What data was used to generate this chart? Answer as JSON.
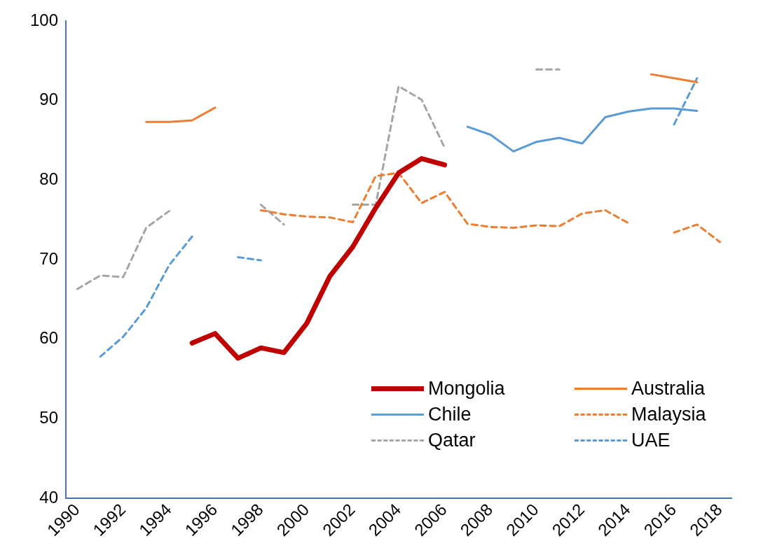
{
  "chart_data": {
    "type": "line",
    "categories": [
      "1990",
      null,
      "1992",
      null,
      "1994",
      null,
      "1996",
      null,
      "1998",
      null,
      "2000",
      null,
      "2002",
      null,
      "2004",
      null,
      "2006",
      null,
      "2008",
      null,
      "2010",
      null,
      "2012",
      null,
      "2014",
      null,
      "2016",
      null,
      "2018"
    ],
    "series": [
      {
        "name": "Mongolia",
        "color": "#c00000",
        "line_style": "solid",
        "values": [
          null,
          null,
          null,
          null,
          null,
          59.5,
          60.7,
          57.6,
          58.9,
          58.3,
          62.0,
          67.9,
          71.6,
          76.5,
          80.9,
          82.7,
          81.9,
          null,
          null,
          null,
          null,
          null,
          null,
          null,
          null,
          null,
          null,
          null,
          null
        ]
      },
      {
        "name": "Australia",
        "color": "#ed7d31",
        "line_style": "solid",
        "values": [
          null,
          null,
          null,
          87.3,
          87.3,
          87.5,
          89.1,
          null,
          null,
          null,
          null,
          null,
          null,
          null,
          null,
          null,
          null,
          null,
          null,
          null,
          null,
          null,
          null,
          null,
          null,
          93.3,
          92.8,
          92.3,
          null
        ]
      },
      {
        "name": "Chile",
        "color": "#5b9bd5",
        "line_style": "solid",
        "values": [
          null,
          null,
          null,
          null,
          null,
          null,
          null,
          null,
          null,
          null,
          null,
          null,
          null,
          null,
          null,
          null,
          null,
          86.7,
          85.7,
          83.6,
          84.8,
          85.3,
          84.6,
          87.9,
          88.6,
          89.0,
          89.0,
          88.7,
          null
        ]
      },
      {
        "name": "Malaysia",
        "color": "#ed7d31",
        "line_style": "dashed",
        "values": [
          null,
          null,
          null,
          null,
          null,
          null,
          null,
          null,
          76.2,
          75.7,
          75.4,
          75.3,
          74.7,
          80.5,
          80.9,
          77.1,
          78.5,
          74.5,
          74.1,
          74.0,
          74.3,
          74.2,
          75.8,
          76.2,
          74.6,
          null,
          73.4,
          74.4,
          72.2
        ]
      },
      {
        "name": "Qatar",
        "color": "#a5a5a5",
        "line_style": "dashed",
        "values": [
          66.3,
          68.0,
          67.8,
          74.0,
          76.1,
          null,
          null,
          null,
          76.9,
          74.4,
          null,
          null,
          76.9,
          76.9,
          91.8,
          90.1,
          84.1,
          null,
          null,
          null,
          93.9,
          93.9,
          null,
          null,
          null,
          null,
          null,
          null,
          null
        ]
      },
      {
        "name": "UAE",
        "color": "#5b9bd5",
        "line_style": "dashed",
        "values": [
          null,
          57.8,
          60.3,
          63.9,
          69.3,
          72.9,
          null,
          70.3,
          69.9,
          null,
          null,
          null,
          null,
          null,
          null,
          null,
          null,
          null,
          null,
          null,
          null,
          null,
          null,
          null,
          null,
          null,
          87.0,
          92.8,
          null
        ]
      }
    ],
    "ylim": [
      40,
      100
    ],
    "yticks": [
      40,
      50,
      60,
      70,
      80,
      90,
      100
    ],
    "grid": false,
    "legend": "bottom right",
    "marker": "none"
  }
}
